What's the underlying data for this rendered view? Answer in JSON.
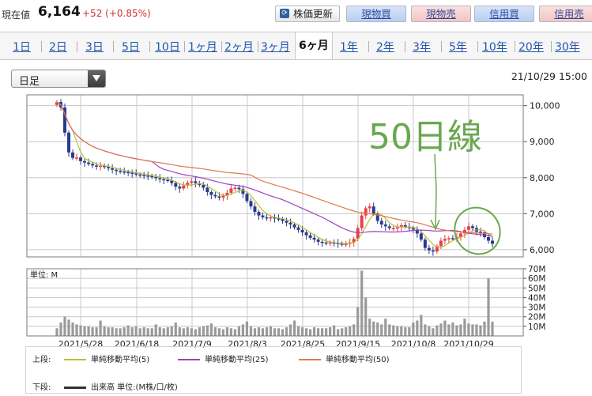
{
  "header": {
    "price_label": "現在値",
    "price_value": "6,164",
    "price_change": "+52 (+0.85%)",
    "refresh_label": "株価更新",
    "buttons": {
      "genbutsu_buy": "現物買",
      "genbutsu_sell": "現物売",
      "shinyo_buy": "信用買",
      "shinyo_sell": "信用売"
    }
  },
  "tabs": [
    "1日",
    "2日",
    "3日",
    "5日",
    "10日",
    "1ヶ月",
    "2ヶ月",
    "3ヶ月",
    "6ヶ月",
    "1年",
    "2年",
    "3年",
    "5年",
    "10年",
    "20年",
    "30年"
  ],
  "active_tab": "6ヶ月",
  "dropdown": {
    "selected": "日足"
  },
  "timestamp": "21/10/29 15:00",
  "annotation": {
    "text": "50日線",
    "color": "#6aa84f"
  },
  "legend": {
    "upper_label": "上段:",
    "lower_label": "下段:",
    "ma5": "単純移動平均(5)",
    "ma25": "単純移動平均(25)",
    "ma50": "単純移動平均(50)",
    "volume": "出来高 単位:(M株/口/枚)"
  },
  "colors": {
    "up": "#e8404a",
    "down": "#2b3a8c",
    "ma5": "#b9bd3a",
    "ma25": "#a040c0",
    "ma50": "#e07850",
    "volume": "#9a9a9a",
    "accent": "#6aa84f"
  },
  "chart_data": {
    "type": "candlestick",
    "x_labels": [
      "2021/5/28",
      "2021/6/18",
      "2021/7/9",
      "2021/8/3",
      "2021/8/25",
      "2021/9/15",
      "2021/10/8",
      "2021/10/29"
    ],
    "price_axis": {
      "ticks": [
        "10,000",
        "9,000",
        "8,000",
        "7,000",
        "6,000"
      ],
      "range": [
        5800,
        10300
      ]
    },
    "volume_axis": {
      "ticks": [
        "70M",
        "60M",
        "50M",
        "40M",
        "30M",
        "20M",
        "10M"
      ],
      "range": [
        0,
        70
      ],
      "unit_label": "単位: M"
    },
    "close": [
      10100,
      9950,
      9250,
      8700,
      8550,
      8560,
      8460,
      8420,
      8380,
      8340,
      8320,
      8330,
      8300,
      8260,
      8220,
      8190,
      8170,
      8160,
      8140,
      8120,
      8090,
      8080,
      8060,
      8050,
      8020,
      7990,
      7960,
      7940,
      7920,
      7850,
      7750,
      7700,
      7780,
      7860,
      7900,
      7850,
      7800,
      7720,
      7600,
      7520,
      7480,
      7450,
      7500,
      7580,
      7700,
      7720,
      7680,
      7550,
      7350,
      7200,
      7050,
      6950,
      6900,
      6880,
      6900,
      6870,
      6850,
      6800,
      6750,
      6700,
      6620,
      6550,
      6480,
      6400,
      6330,
      6280,
      6220,
      6200,
      6180,
      6200,
      6190,
      6170,
      6150,
      6160,
      6200,
      6300,
      6600,
      6950,
      7150,
      7200,
      7000,
      6800,
      6700,
      6650,
      6600,
      6600,
      6620,
      6680,
      6640,
      6600,
      6560,
      6450,
      6280,
      6050,
      5980,
      5950,
      6100,
      6250,
      6300,
      6320,
      6300,
      6350,
      6450,
      6550,
      6650,
      6600,
      6500,
      6480,
      6350,
      6250,
      6164
    ],
    "volume": [
      8,
      14,
      20,
      17,
      14,
      12,
      11,
      10,
      10,
      9,
      9,
      16,
      10,
      9,
      9,
      8,
      8,
      9,
      11,
      9,
      10,
      8,
      9,
      8,
      8,
      12,
      9,
      8,
      9,
      10,
      14,
      9,
      8,
      9,
      8,
      7,
      9,
      10,
      11,
      13,
      9,
      8,
      7,
      9,
      8,
      7,
      10,
      12,
      15,
      10,
      8,
      9,
      8,
      9,
      10,
      8,
      8,
      7,
      9,
      12,
      16,
      10,
      9,
      8,
      7,
      9,
      8,
      8,
      8,
      9,
      11,
      7,
      8,
      9,
      10,
      12,
      30,
      68,
      40,
      18,
      15,
      14,
      12,
      18,
      12,
      11,
      10,
      10,
      9,
      9,
      14,
      16,
      22,
      12,
      10,
      8,
      11,
      13,
      16,
      12,
      14,
      11,
      12,
      18,
      13,
      12,
      12,
      11,
      15,
      60,
      15
    ],
    "series": [
      {
        "name": "単純移動平均(5)",
        "color": "#b9bd3a"
      },
      {
        "name": "単純移動平均(25)",
        "color": "#a040c0"
      },
      {
        "name": "単純移動平均(50)",
        "color": "#e07850"
      }
    ]
  }
}
